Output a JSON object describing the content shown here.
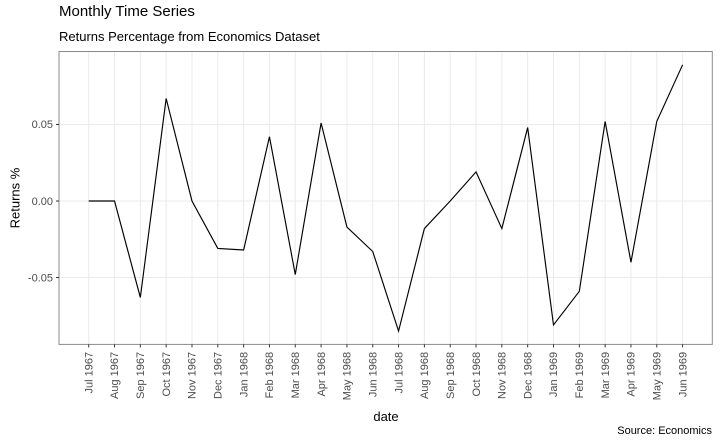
{
  "chart_data": {
    "type": "line",
    "title": "Monthly Time Series",
    "subtitle": "Returns Percentage from Economics Dataset",
    "xlabel": "date",
    "ylabel": "Returns %",
    "caption": "Source: Economics",
    "categories": [
      "Jul 1967",
      "Aug 1967",
      "Sep 1967",
      "Oct 1967",
      "Nov 1967",
      "Dec 1967",
      "Jan 1968",
      "Feb 1968",
      "Mar 1968",
      "Apr 1968",
      "May 1968",
      "Jun 1968",
      "Jul 1968",
      "Aug 1968",
      "Sep 1968",
      "Oct 1968",
      "Nov 1968",
      "Dec 1968",
      "Jan 1969",
      "Feb 1969",
      "Mar 1969",
      "Apr 1969",
      "May 1969",
      "Jun 1969"
    ],
    "values": [
      0.0,
      0.0,
      -0.063,
      0.067,
      0.0,
      -0.031,
      -0.032,
      0.042,
      -0.048,
      0.051,
      -0.017,
      -0.033,
      -0.085,
      -0.018,
      0.0,
      0.019,
      -0.018,
      0.048,
      -0.081,
      -0.059,
      0.052,
      -0.04,
      0.052,
      0.089
    ],
    "yticks": [
      {
        "label": "0.05",
        "value": 0.05
      },
      {
        "label": "0.00",
        "value": 0.0
      },
      {
        "label": "-0.05",
        "value": -0.05
      }
    ],
    "ylim": [
      -0.0937,
      0.0977
    ],
    "grid": true,
    "legend": "none"
  },
  "colors": {
    "background": "#ffffff",
    "line": "#000000",
    "grid": "#ebebeb",
    "panel_border": "#8a8a8a",
    "tick": "#333333",
    "tick_label": "#4d4d4d",
    "text": "#000000"
  }
}
